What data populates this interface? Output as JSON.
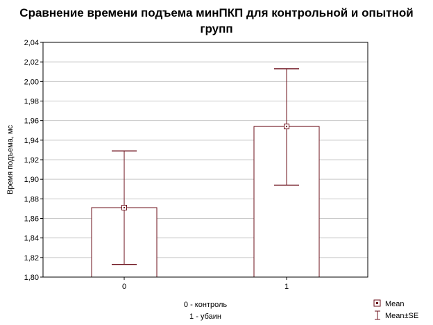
{
  "colors": {
    "bar_stroke": "#6b0f1a",
    "bar_fill": "#ffffff",
    "error_stroke": "#6b0f1a",
    "grid": "#c8c8c8",
    "frame": "#000000"
  },
  "chart_data": {
    "type": "bar",
    "title_line1": "Сравнение времени подъема минПКП для контрольной и опытной",
    "title_line2": "групп",
    "ylabel": "Время подъема, мс",
    "xlabel_line1": "0 - контроль",
    "xlabel_line2": "1 - убаин",
    "categories": [
      "0",
      "1"
    ],
    "values": [
      1.871,
      1.954
    ],
    "se_low": [
      1.813,
      1.894
    ],
    "se_high": [
      1.929,
      2.013
    ],
    "ylim": [
      1.8,
      2.04
    ],
    "yticks": [
      "1,80",
      "1,82",
      "1,84",
      "1,86",
      "1,88",
      "1,90",
      "1,92",
      "1,94",
      "1,96",
      "1,98",
      "2,00",
      "2,02",
      "2,04"
    ],
    "grid": true,
    "legend_position": "bottom-right",
    "legend": [
      {
        "name": "Mean",
        "icon": "square-marker-icon"
      },
      {
        "name": "Mean±SE",
        "icon": "error-bar-icon"
      }
    ]
  }
}
